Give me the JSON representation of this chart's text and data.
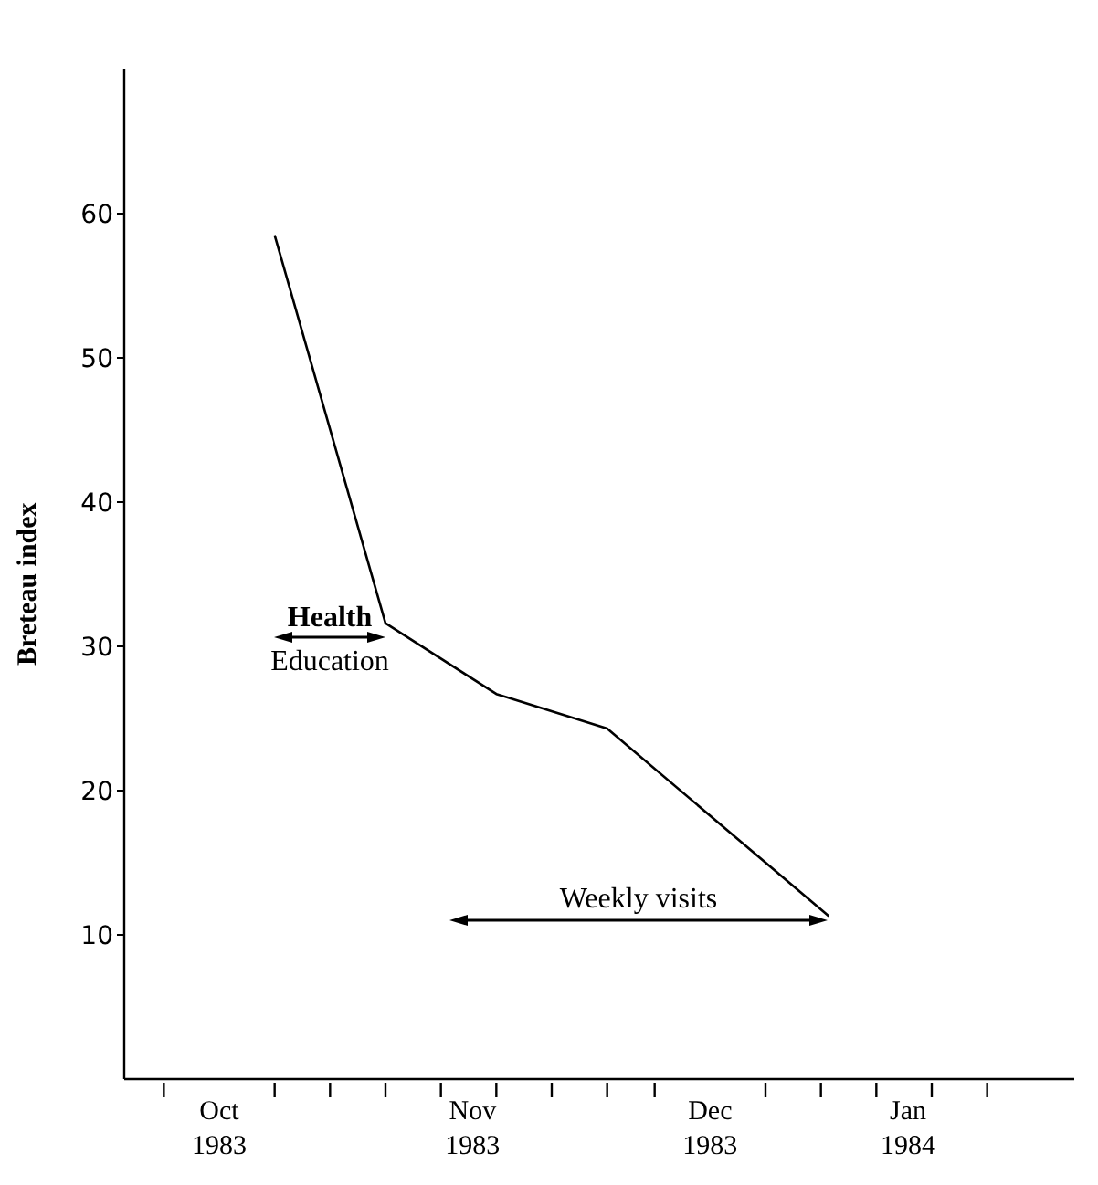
{
  "chart_data": {
    "type": "line",
    "ylabel": "Breteau index",
    "x": [
      "1983-10-13",
      "1983-10-27",
      "1983-11-10",
      "1983-11-24",
      "1983-12-22"
    ],
    "series": [
      {
        "color": "#000000",
        "values": [
          58.5,
          31.6,
          26.7,
          24.3,
          11.3
        ]
      }
    ],
    "xlim": [
      "1983-09-24",
      "1984-01-22"
    ],
    "xticks": [
      {
        "value": "1983-09-29",
        "label": null
      },
      {
        "value": "1983-10-06",
        "label": "Oct 1983"
      },
      {
        "value": "1983-10-13",
        "label": null
      },
      {
        "value": "1983-10-20",
        "label": null
      },
      {
        "value": "1983-10-27",
        "label": null
      },
      {
        "value": "1983-11-03",
        "label": null
      },
      {
        "value": "1983-11-07",
        "label": "Nov 1983"
      },
      {
        "value": "1983-11-10",
        "label": null
      },
      {
        "value": "1983-11-17",
        "label": null
      },
      {
        "value": "1983-11-24",
        "label": null
      },
      {
        "value": "1983-11-30",
        "label": null
      },
      {
        "value": "1983-12-07",
        "label": "Dec 1983"
      },
      {
        "value": "1983-12-14",
        "label": null
      },
      {
        "value": "1983-12-21",
        "label": null
      },
      {
        "value": "1983-12-28",
        "label": null
      },
      {
        "value": "1984-01-01",
        "label": "Jan 1984"
      },
      {
        "value": "1984-01-04",
        "label": null
      },
      {
        "value": "1984-01-11",
        "label": null
      }
    ],
    "ylim": [
      0,
      70
    ],
    "yticks": [
      10,
      20,
      30,
      40,
      50,
      60
    ],
    "annotations": [
      "Health Education",
      "Weekly visits"
    ],
    "grid": false,
    "legend": false,
    "marker": "none",
    "line_style": "solid"
  }
}
